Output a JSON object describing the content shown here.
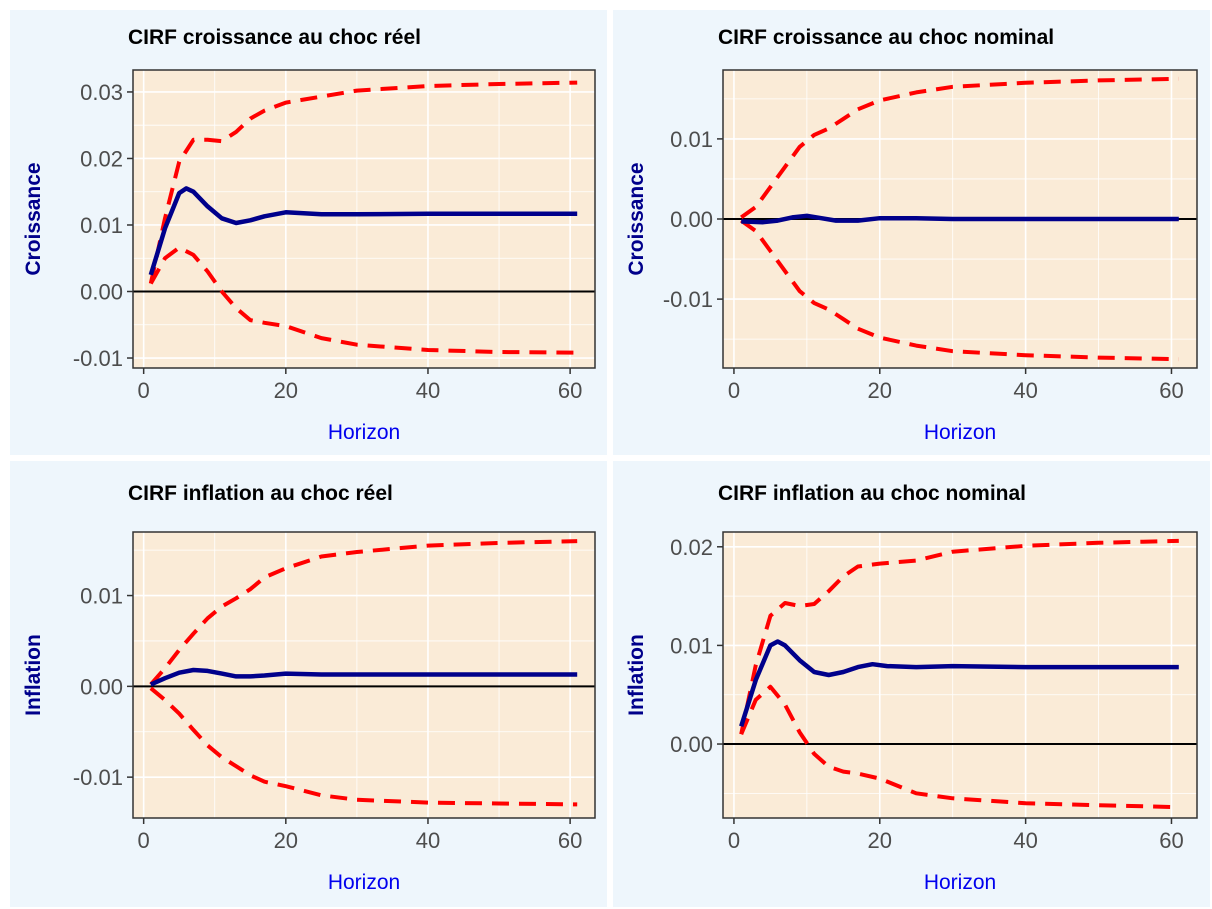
{
  "chart_data": [
    {
      "type": "line",
      "title": "CIRF croissance au choc réel",
      "xlabel": "Horizon",
      "ylabel": "Croissance",
      "xlim": [
        -1.5,
        63.5
      ],
      "ylim": [
        -0.0115,
        0.0333
      ],
      "xticks": [
        0,
        20,
        40,
        60
      ],
      "xtick_labels": [
        "0",
        "20",
        "40",
        "60"
      ],
      "yticks": [
        -0.01,
        0,
        0.01,
        0.02,
        0.03
      ],
      "ytick_labels": [
        "-0.01",
        "0.00",
        "0.01",
        "0.02",
        "0.03"
      ],
      "hline": 0,
      "series": [
        {
          "style": "solid",
          "color": "#00008b",
          "x": [
            1,
            3,
            5,
            6,
            7,
            9,
            11,
            13,
            15,
            17,
            20,
            25,
            30,
            40,
            50,
            61
          ],
          "y": [
            0.0025,
            0.0095,
            0.0148,
            0.0155,
            0.015,
            0.0128,
            0.011,
            0.0103,
            0.0107,
            0.0113,
            0.0119,
            0.0116,
            0.0116,
            0.0117,
            0.0117,
            0.0117
          ]
        },
        {
          "style": "dashed",
          "color": "#ff0000",
          "x": [
            1,
            3,
            5,
            7,
            9,
            11,
            13,
            15,
            17,
            20,
            25,
            30,
            40,
            50,
            61
          ],
          "y": [
            0.0012,
            0.011,
            0.0195,
            0.0228,
            0.0228,
            0.0226,
            0.024,
            0.026,
            0.0272,
            0.0284,
            0.0293,
            0.0302,
            0.0309,
            0.0312,
            0.0314
          ]
        },
        {
          "style": "dashed",
          "color": "#ff0000",
          "x": [
            1,
            3,
            5,
            7,
            9,
            11,
            13,
            15,
            17,
            20,
            25,
            30,
            40,
            50,
            61
          ],
          "y": [
            0.0012,
            0.005,
            0.0066,
            0.0055,
            0.003,
            0.0,
            -0.0025,
            -0.0043,
            -0.0047,
            -0.0052,
            -0.007,
            -0.008,
            -0.0088,
            -0.0091,
            -0.0092
          ]
        }
      ]
    },
    {
      "type": "line",
      "title": "CIRF croissance au choc nominal",
      "xlabel": "Horizon",
      "ylabel": "Croissance",
      "xlim": [
        -1.5,
        63.5
      ],
      "ylim": [
        -0.0186,
        0.0186
      ],
      "xticks": [
        0,
        20,
        40,
        60
      ],
      "xtick_labels": [
        "0",
        "20",
        "40",
        "60"
      ],
      "yticks": [
        -0.01,
        0,
        0.01
      ],
      "ytick_labels": [
        "-0.01",
        "0.00",
        "0.01"
      ],
      "hline": 0,
      "series": [
        {
          "style": "solid",
          "color": "#00008b",
          "x": [
            1,
            4,
            6,
            8,
            10,
            12,
            14,
            17,
            20,
            25,
            30,
            40,
            50,
            61
          ],
          "y": [
            -0.0003,
            -0.0004,
            -0.0002,
            0.0002,
            0.0004,
            0.0001,
            -0.0002,
            -0.0002,
            0.0001,
            0.0001,
            0,
            0,
            0,
            0
          ]
        },
        {
          "style": "dashed",
          "color": "#ff0000",
          "x": [
            1,
            3,
            5,
            7,
            9,
            11,
            13,
            15,
            17,
            20,
            25,
            30,
            40,
            50,
            61
          ],
          "y": [
            0.0002,
            0.0015,
            0.004,
            0.0065,
            0.009,
            0.0105,
            0.0113,
            0.0125,
            0.0137,
            0.0148,
            0.0158,
            0.0165,
            0.017,
            0.0173,
            0.0175
          ]
        },
        {
          "style": "dashed",
          "color": "#ff0000",
          "x": [
            1,
            3,
            5,
            7,
            9,
            11,
            13,
            15,
            17,
            20,
            25,
            30,
            40,
            50,
            61
          ],
          "y": [
            -0.0002,
            -0.0015,
            -0.004,
            -0.0065,
            -0.009,
            -0.0105,
            -0.0113,
            -0.0125,
            -0.0137,
            -0.0148,
            -0.0158,
            -0.0165,
            -0.017,
            -0.0173,
            -0.0175
          ]
        }
      ]
    },
    {
      "type": "line",
      "title": "CIRF inflation au choc réel",
      "xlabel": "Horizon",
      "ylabel": "Inflation",
      "xlim": [
        -1.5,
        63.5
      ],
      "ylim": [
        -0.0145,
        0.017
      ],
      "xticks": [
        0,
        20,
        40,
        60
      ],
      "xtick_labels": [
        "0",
        "20",
        "40",
        "60"
      ],
      "yticks": [
        -0.01,
        0,
        0.01
      ],
      "ytick_labels": [
        "-0.01",
        "0.00",
        "0.01"
      ],
      "hline": 0,
      "series": [
        {
          "style": "solid",
          "color": "#00008b",
          "x": [
            1,
            3,
            5,
            7,
            9,
            11,
            13,
            15,
            17,
            20,
            25,
            30,
            40,
            50,
            61
          ],
          "y": [
            0.0002,
            0.0009,
            0.0015,
            0.0018,
            0.0017,
            0.0014,
            0.0011,
            0.0011,
            0.0012,
            0.0014,
            0.0013,
            0.0013,
            0.0013,
            0.0013,
            0.0013
          ]
        },
        {
          "style": "dashed",
          "color": "#ff0000",
          "x": [
            1,
            3,
            5,
            7,
            9,
            11,
            13,
            15,
            17,
            20,
            25,
            30,
            40,
            50,
            61
          ],
          "y": [
            0.0002,
            0.002,
            0.004,
            0.0058,
            0.0075,
            0.0088,
            0.0097,
            0.0107,
            0.012,
            0.013,
            0.0143,
            0.0148,
            0.0155,
            0.0158,
            0.016
          ]
        },
        {
          "style": "dashed",
          "color": "#ff0000",
          "x": [
            1,
            3,
            5,
            7,
            9,
            11,
            13,
            15,
            17,
            20,
            25,
            30,
            40,
            50,
            61
          ],
          "y": [
            -0.0002,
            -0.0015,
            -0.003,
            -0.0048,
            -0.0065,
            -0.0078,
            -0.0088,
            -0.0098,
            -0.0105,
            -0.011,
            -0.012,
            -0.0125,
            -0.0128,
            -0.0129,
            -0.013
          ]
        }
      ]
    },
    {
      "type": "line",
      "title": "CIRF inflation au choc nominal",
      "xlabel": "Horizon",
      "ylabel": "Inflation",
      "xlim": [
        -1.5,
        63.5
      ],
      "ylim": [
        -0.0075,
        0.0215
      ],
      "xticks": [
        0,
        20,
        40,
        60
      ],
      "xtick_labels": [
        "0",
        "20",
        "40",
        "60"
      ],
      "yticks": [
        0,
        0.01,
        0.02
      ],
      "ytick_labels": [
        "0.00",
        "0.01",
        "0.02"
      ],
      "hline": 0,
      "series": [
        {
          "style": "solid",
          "color": "#00008b",
          "x": [
            1,
            3,
            5,
            6,
            7,
            9,
            11,
            13,
            15,
            17,
            19,
            21,
            25,
            30,
            40,
            50,
            61
          ],
          "y": [
            0.0018,
            0.0065,
            0.01,
            0.0104,
            0.01,
            0.0085,
            0.0073,
            0.007,
            0.0073,
            0.0078,
            0.0081,
            0.0079,
            0.0078,
            0.0079,
            0.0078,
            0.0078,
            0.0078
          ]
        },
        {
          "style": "dashed",
          "color": "#ff0000",
          "x": [
            1,
            3,
            5,
            7,
            9,
            11,
            13,
            15,
            17,
            20,
            25,
            30,
            40,
            50,
            61
          ],
          "y": [
            0.001,
            0.008,
            0.013,
            0.0143,
            0.014,
            0.0142,
            0.0155,
            0.017,
            0.018,
            0.0183,
            0.0186,
            0.0195,
            0.0201,
            0.0204,
            0.0206
          ]
        },
        {
          "style": "dashed",
          "color": "#ff0000",
          "x": [
            1,
            3,
            5,
            7,
            9,
            11,
            13,
            15,
            17,
            20,
            25,
            30,
            40,
            50,
            61
          ],
          "y": [
            0.001,
            0.0045,
            0.0058,
            0.004,
            0.0012,
            -0.001,
            -0.0023,
            -0.0028,
            -0.003,
            -0.0035,
            -0.005,
            -0.0055,
            -0.006,
            -0.0062,
            -0.0064
          ]
        }
      ]
    }
  ]
}
